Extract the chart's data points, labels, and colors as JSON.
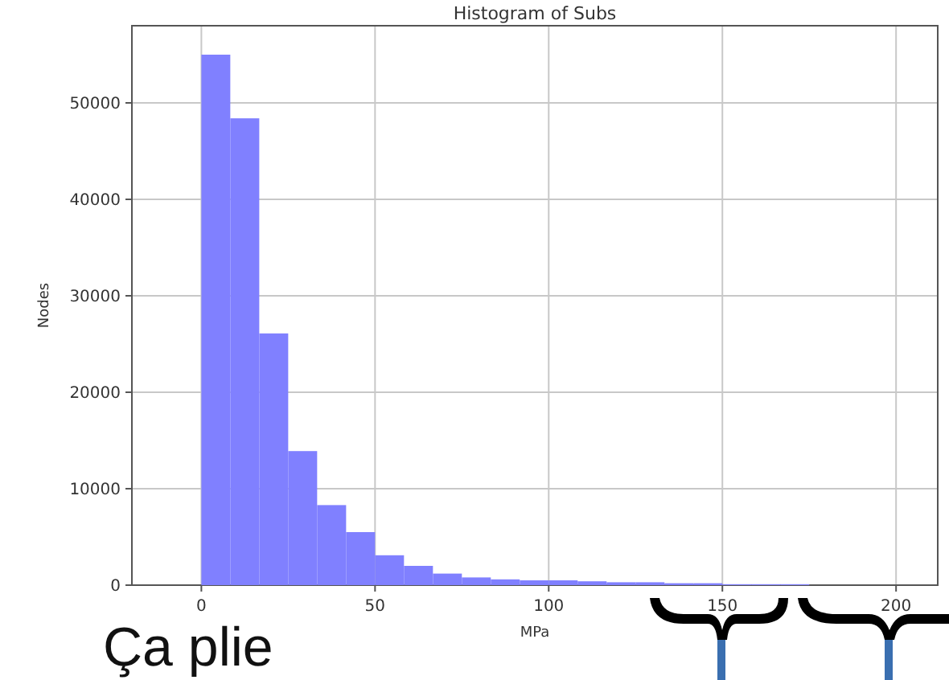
{
  "chart_data": {
    "type": "histogram",
    "title": "Histogram of Subs",
    "xlabel": "MPa",
    "ylabel": "Nodes",
    "bins": [
      0,
      8.33,
      16.67,
      25,
      33.33,
      41.67,
      50,
      58.33,
      66.67,
      75,
      83.33,
      91.67,
      100,
      108.33,
      116.67,
      125,
      133.33,
      141.67,
      150,
      158.33,
      166.67,
      175,
      183.33,
      191.67,
      200
    ],
    "values": [
      55000,
      48400,
      26100,
      13900,
      8300,
      5500,
      3100,
      2000,
      1200,
      800,
      600,
      500,
      500,
      400,
      300,
      300,
      200,
      200,
      100,
      100,
      100,
      0,
      0,
      0
    ],
    "color": "#8080ff",
    "xlim": [
      -20,
      212
    ],
    "xticks": [
      0,
      50,
      100,
      150,
      200
    ],
    "ylim": [
      0,
      58000
    ],
    "yticks": [
      0,
      10000,
      20000,
      30000,
      40000,
      50000
    ],
    "grid": true,
    "annotations": [
      "Ça plie"
    ]
  }
}
